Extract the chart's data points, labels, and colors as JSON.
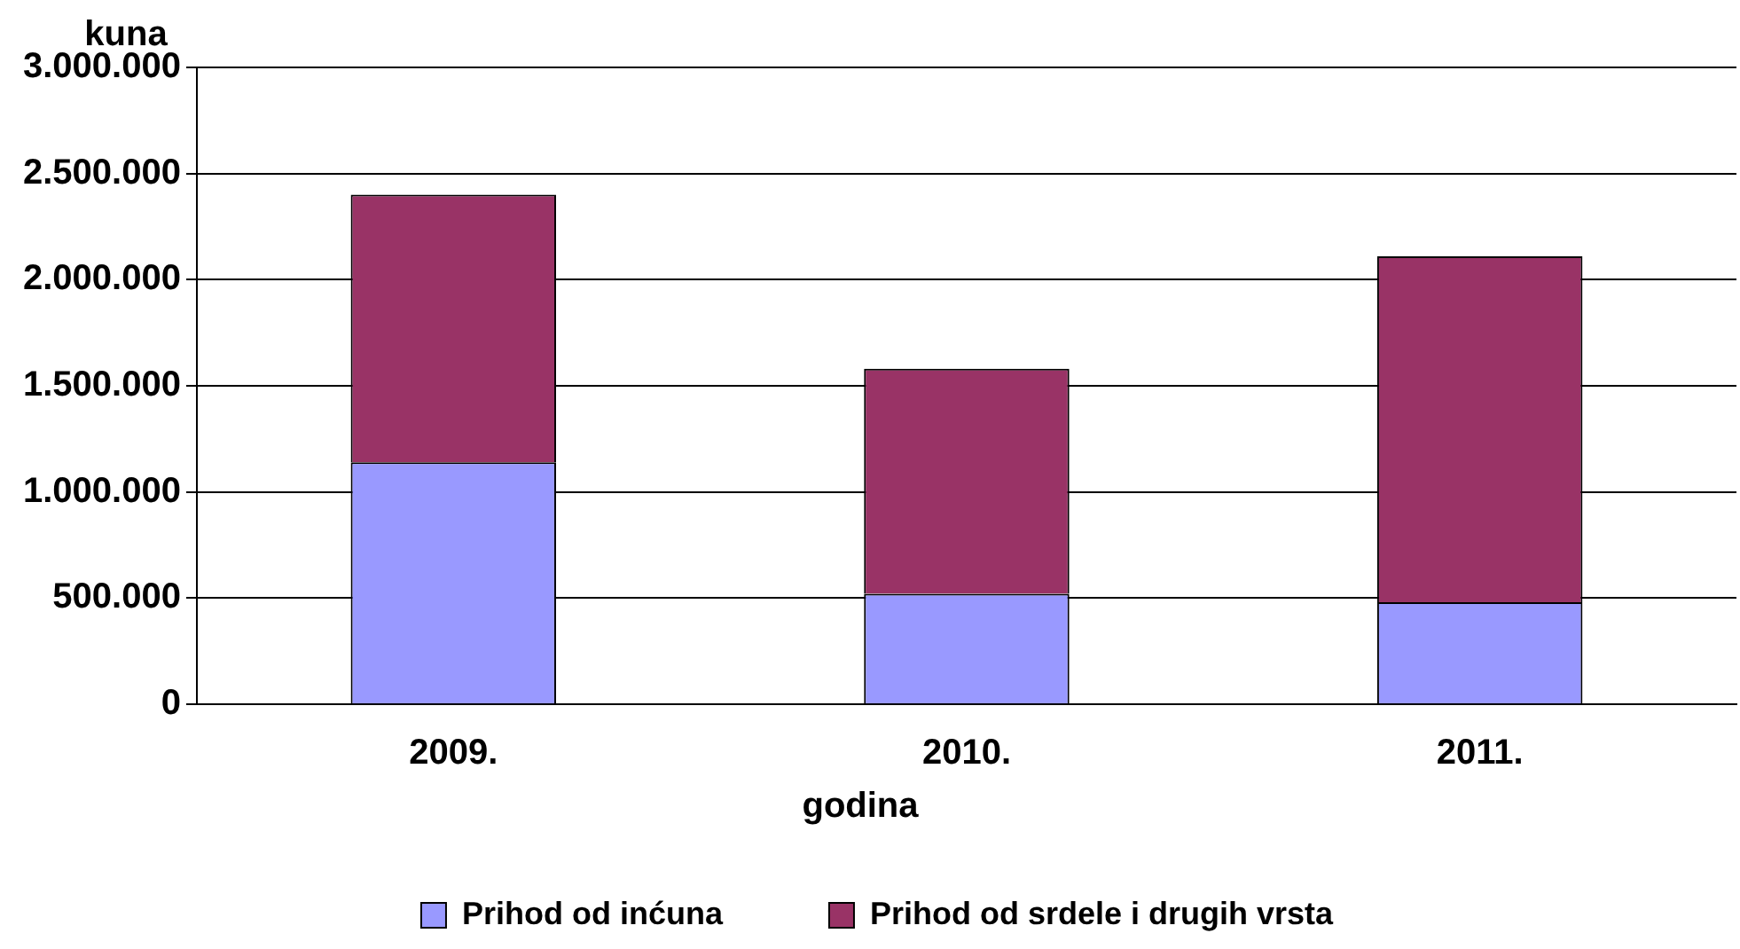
{
  "chart_data": {
    "type": "bar",
    "stacked": true,
    "ylabel": "kuna",
    "xlabel": "godina",
    "categories": [
      "2009.",
      "2010.",
      "2011."
    ],
    "series": [
      {
        "name": "Prihod od inćuna",
        "color": "#9999ff",
        "values": [
          1140000,
          520000,
          480000
        ]
      },
      {
        "name": "Prihod od srdele i drugih vrsta",
        "color": "#993366",
        "values": [
          1260000,
          1060000,
          1630000
        ]
      }
    ],
    "ylim": [
      0,
      3000000
    ],
    "yticks": [
      {
        "value": 0,
        "label": "0"
      },
      {
        "value": 500000,
        "label": "500.000"
      },
      {
        "value": 1000000,
        "label": "1.000.000"
      },
      {
        "value": 1500000,
        "label": "1.500.000"
      },
      {
        "value": 2000000,
        "label": "2.000.000"
      },
      {
        "value": 2500000,
        "label": "2.500.000"
      },
      {
        "value": 3000000,
        "label": "3.000.000"
      }
    ],
    "grid": "y",
    "legend": "bottom"
  }
}
